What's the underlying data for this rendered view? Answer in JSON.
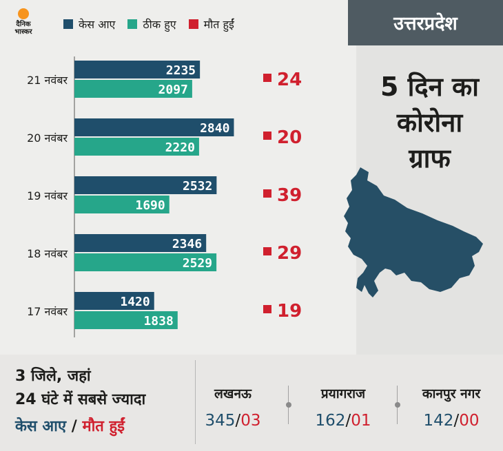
{
  "logo": {
    "line1": "दैनिक",
    "line2": "भास्कर"
  },
  "legend": [
    {
      "label": "केस आए",
      "color": "#1f4e6b"
    },
    {
      "label": "ठीक हुए",
      "color": "#26a68a"
    },
    {
      "label": "मौत हुईं",
      "color": "#d0202e"
    }
  ],
  "state_tab": "उत्तरप्रदेश",
  "heading": {
    "line1": "5 दिन का",
    "line2": "कोरोना",
    "line3": "ग्राफ"
  },
  "chart_data": {
    "type": "bar",
    "orientation": "horizontal",
    "categories": [
      "21 नवंबर",
      "20 नवंबर",
      "19 नवंबर",
      "18 नवंबर",
      "17 नवंबर"
    ],
    "series": [
      {
        "name": "केस आए",
        "values": [
          2235,
          2840,
          2532,
          2346,
          1420
        ],
        "color": "#1f4e6b"
      },
      {
        "name": "ठीक हुए",
        "values": [
          2097,
          2220,
          1690,
          2529,
          1838
        ],
        "color": "#26a68a"
      }
    ],
    "deaths": {
      "name": "मौत हुईं",
      "values": [
        24,
        20,
        39,
        29,
        19
      ],
      "color": "#d0202e"
    },
    "xlim": [
      0,
      3400
    ]
  },
  "bottom": {
    "text_line1": "3 जिले, जहां",
    "text_line2": "24 घंटे में सबसे ज्यादा",
    "text_line3_a": "केस आए",
    "text_line3_sep": " / ",
    "text_line3_b": "मौत हुईं",
    "cities": [
      {
        "name": "लखनऊ",
        "cases": "345",
        "sep": "/",
        "deaths": "03"
      },
      {
        "name": "प्रयागराज",
        "cases": "162",
        "sep": "/",
        "deaths": "01"
      },
      {
        "name": "कानपुर नगर",
        "cases": "142",
        "sep": "/",
        "deaths": "00"
      }
    ]
  }
}
